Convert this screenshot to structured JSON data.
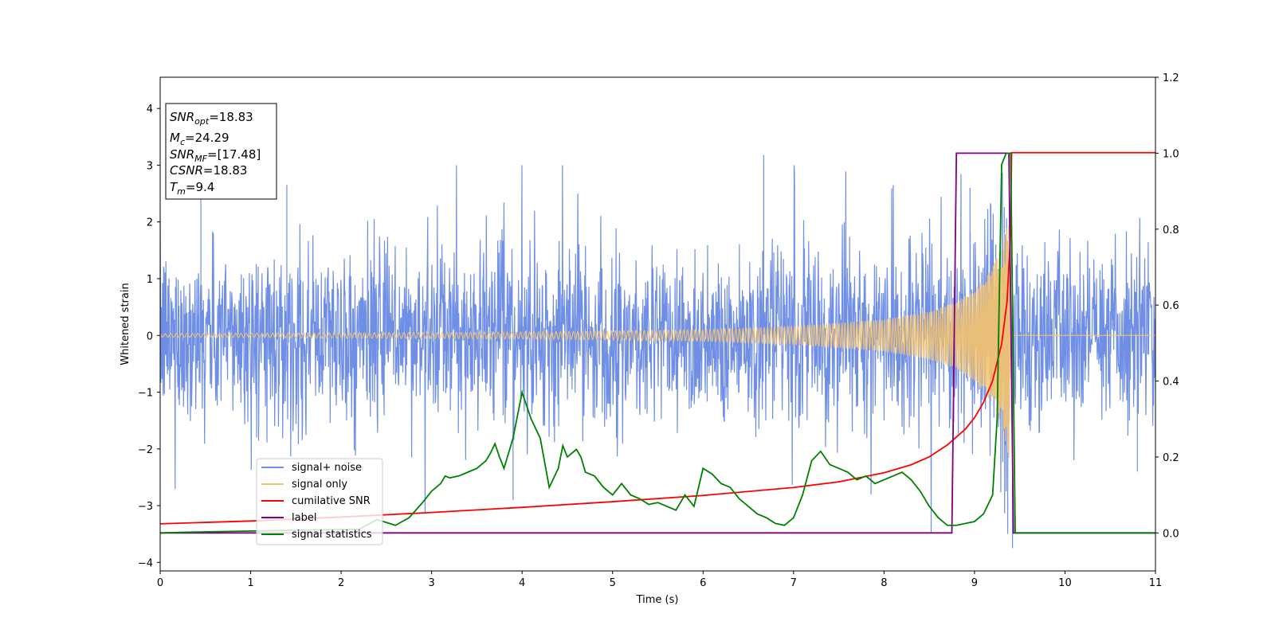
{
  "chart_data": {
    "type": "line",
    "xlabel": "Time (s)",
    "ylabel": "Whitened strain",
    "xlim": [
      0,
      11
    ],
    "ylim_left": [
      -4.15,
      4.55
    ],
    "ylim_right": [
      -0.1,
      1.2
    ],
    "xticks": [
      "0",
      "1",
      "2",
      "3",
      "4",
      "5",
      "6",
      "7",
      "8",
      "9",
      "10",
      "11"
    ],
    "yticks_left": [
      "4",
      "3",
      "2",
      "1",
      "0",
      "−1",
      "−2",
      "−3",
      "−4"
    ],
    "yticks_right": [
      "1.2",
      "1.0",
      "0.8",
      "0.6",
      "0.4",
      "0.2",
      "0.0"
    ],
    "series": [
      {
        "name": "signal+ noise",
        "color": "#6f8fe6",
        "axis": "left",
        "description_values": {
          "typical_amplitude": 1.2,
          "max": 3.18,
          "min": -3.75
        },
        "spikes": [
          [
            0.45,
            2.5
          ],
          [
            1.4,
            2.65
          ],
          [
            6.67,
            3.18
          ],
          [
            9.42,
            -3.75
          ],
          [
            3.9,
            -2.9
          ],
          [
            8.95,
            2.6
          ],
          [
            10.8,
            -2.4
          ]
        ]
      },
      {
        "name": "signal only",
        "color": "#f5c36b",
        "axis": "left",
        "envelope": [
          [
            0,
            0.03
          ],
          [
            4,
            0.06
          ],
          [
            6,
            0.1
          ],
          [
            7,
            0.16
          ],
          [
            8,
            0.28
          ],
          [
            8.5,
            0.42
          ],
          [
            8.8,
            0.6
          ],
          [
            9.0,
            0.8
          ],
          [
            9.2,
            1.2
          ],
          [
            9.3,
            1.6
          ],
          [
            9.38,
            2.2
          ],
          [
            9.4,
            0
          ]
        ],
        "post_merger_value": 0
      },
      {
        "name": "cumilative SNR",
        "color": "#ff0000",
        "axis": "left",
        "x": [
          0,
          1,
          2,
          3,
          4,
          5,
          6,
          7,
          7.5,
          8,
          8.3,
          8.5,
          8.7,
          8.9,
          9.0,
          9.1,
          9.2,
          9.3,
          9.36,
          9.4,
          9.41,
          11
        ],
        "y": [
          -3.32,
          -3.27,
          -3.2,
          -3.12,
          -3.03,
          -2.93,
          -2.82,
          -2.68,
          -2.58,
          -2.42,
          -2.28,
          -2.14,
          -1.93,
          -1.65,
          -1.45,
          -1.18,
          -0.8,
          -0.15,
          0.6,
          1.85,
          3.22,
          3.22
        ]
      },
      {
        "name": "label",
        "color": "#800080",
        "axis": "right",
        "x": [
          0,
          8.75,
          8.8,
          9.38,
          9.43,
          11
        ],
        "y": [
          0,
          0,
          1,
          1,
          0,
          0
        ]
      },
      {
        "name": "signal statistics",
        "color": "#008000",
        "axis": "right",
        "x": [
          0,
          0.3,
          2.2,
          2.4,
          2.6,
          2.75,
          2.9,
          3.0,
          3.1,
          3.15,
          3.2,
          3.3,
          3.4,
          3.5,
          3.6,
          3.65,
          3.7,
          3.75,
          3.8,
          3.9,
          4.0,
          4.1,
          4.2,
          4.3,
          4.4,
          4.45,
          4.5,
          4.6,
          4.65,
          4.7,
          4.8,
          4.9,
          5.0,
          5.1,
          5.2,
          5.3,
          5.4,
          5.5,
          5.6,
          5.7,
          5.8,
          5.9,
          6.0,
          6.1,
          6.2,
          6.3,
          6.4,
          6.5,
          6.6,
          6.7,
          6.8,
          6.9,
          7.0,
          7.1,
          7.2,
          7.3,
          7.4,
          7.5,
          7.6,
          7.7,
          7.8,
          7.9,
          8.0,
          8.1,
          8.2,
          8.3,
          8.4,
          8.5,
          8.6,
          8.7,
          8.8,
          8.9,
          9.0,
          9.1,
          9.2,
          9.25,
          9.3,
          9.35,
          9.4,
          9.45,
          9.5,
          10,
          11
        ],
        "y": [
          0,
          0.002,
          0.01,
          0.035,
          0.02,
          0.04,
          0.08,
          0.11,
          0.13,
          0.15,
          0.145,
          0.15,
          0.16,
          0.17,
          0.19,
          0.21,
          0.235,
          0.2,
          0.17,
          0.25,
          0.37,
          0.3,
          0.25,
          0.12,
          0.17,
          0.23,
          0.2,
          0.22,
          0.2,
          0.16,
          0.15,
          0.12,
          0.1,
          0.13,
          0.1,
          0.09,
          0.075,
          0.08,
          0.07,
          0.06,
          0.1,
          0.07,
          0.17,
          0.155,
          0.13,
          0.12,
          0.09,
          0.07,
          0.05,
          0.04,
          0.025,
          0.02,
          0.04,
          0.1,
          0.19,
          0.215,
          0.18,
          0.17,
          0.16,
          0.14,
          0.15,
          0.13,
          0.14,
          0.15,
          0.16,
          0.14,
          0.11,
          0.07,
          0.04,
          0.02,
          0.02,
          0.025,
          0.03,
          0.05,
          0.1,
          0.3,
          0.97,
          1.0,
          1.0,
          0.0,
          0.0,
          0.0,
          0.0
        ]
      }
    ],
    "legend_placement": "lower-left",
    "grid": false
  },
  "info_box": {
    "lines": [
      {
        "var": "SNR",
        "sub": "opt",
        "value": "=18.83"
      },
      {
        "var": "M",
        "sub": "c",
        "value": "=24.29"
      },
      {
        "var": "SNR",
        "sub": "MF",
        "value": "=[17.48]"
      },
      {
        "var": "CSNR",
        "sub": "",
        "value": "=18.83"
      },
      {
        "var": "T",
        "sub": "m",
        "value": "=9.4"
      }
    ]
  }
}
